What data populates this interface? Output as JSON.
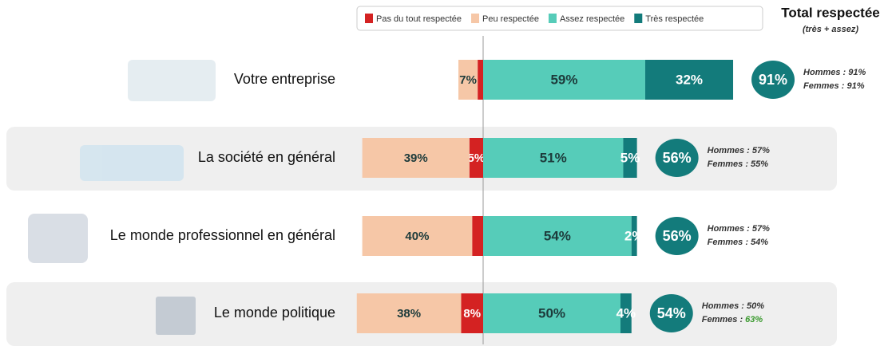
{
  "chart_data": {
    "type": "diverging-bar",
    "categories": [
      "Votre entreprise",
      "La société en général",
      "Le monde professionnel en général",
      "Le monde politique"
    ],
    "series": [
      {
        "name": "Pas du tout respectée",
        "color": "#d42222",
        "side": "left",
        "values": [
          2,
          5,
          4,
          8
        ],
        "value_labels": [
          "2%",
          "5%",
          "4%",
          "8%"
        ]
      },
      {
        "name": "Peu respectée",
        "color": "#f6c7a7",
        "side": "left",
        "values": [
          7,
          39,
          40,
          38
        ],
        "value_labels": [
          "7%",
          "39%",
          "40%",
          "38%"
        ]
      },
      {
        "name": "Assez respectée",
        "color": "#56ccb9",
        "side": "right",
        "values": [
          59,
          51,
          54,
          50
        ],
        "value_labels": [
          "59%",
          "51%",
          "54%",
          "50%"
        ]
      },
      {
        "name": "Très respectée",
        "color": "#137b7b",
        "side": "right",
        "values": [
          32,
          5,
          2,
          4
        ],
        "value_labels": [
          "32%",
          "5%",
          "2%",
          "4%"
        ]
      }
    ],
    "total": {
      "title": "Total respectée",
      "subtitle": "(très + assez)",
      "color": "#137b7b",
      "values": [
        91,
        56,
        56,
        54
      ],
      "value_labels": [
        "91%",
        "56%",
        "56%",
        "54%"
      ]
    },
    "gender": [
      {
        "label": "Hommes :",
        "values": [
          91,
          57,
          57,
          50
        ],
        "value_labels": [
          "91%",
          "57%",
          "57%",
          "50%"
        ],
        "value_colors": [
          "#333333",
          "#333333",
          "#333333",
          "#333333"
        ]
      },
      {
        "label": "Femmes :",
        "values": [
          91,
          55,
          54,
          63
        ],
        "value_labels": [
          "91%",
          "55%",
          "54%",
          "63%"
        ],
        "value_colors": [
          "#333333",
          "#333333",
          "#333333",
          "#3a9a2e"
        ]
      }
    ]
  }
}
